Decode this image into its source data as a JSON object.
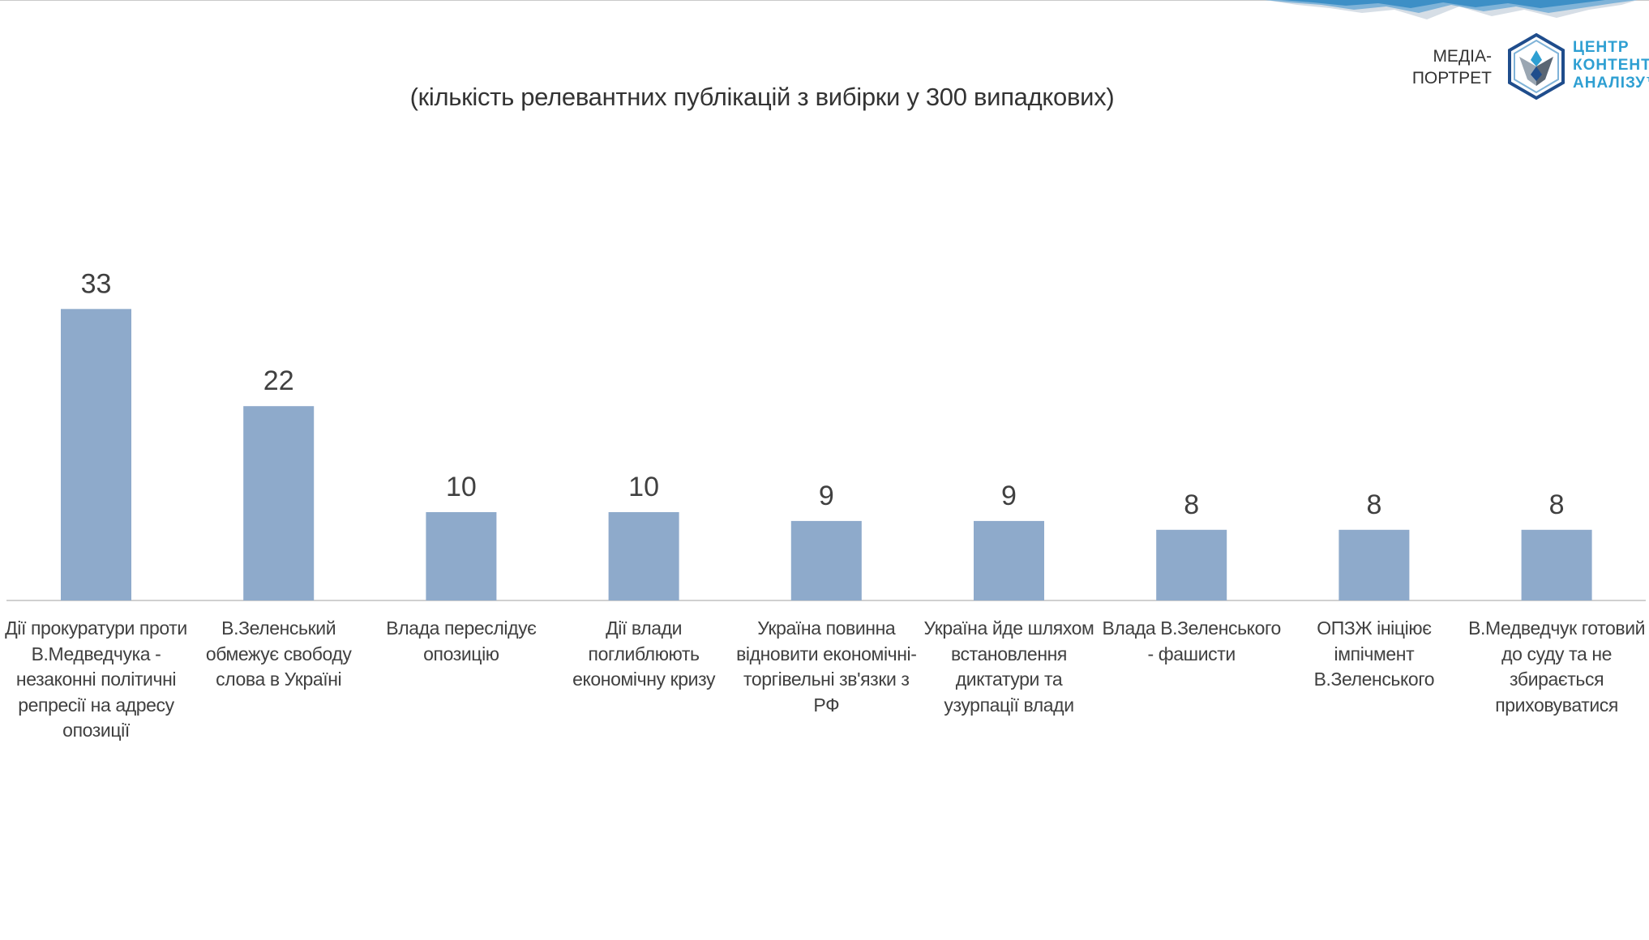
{
  "header": {
    "subtitle": "(кількість релевантних публікацій з вибірки у 300 випадкових)",
    "brand_media_line1": "МЕДІА-",
    "brand_media_line2": "ПОРТРЕТ",
    "brand_center_line1": "ЦЕНТР",
    "brand_center_line2": "КОНТЕНТ_",
    "brand_center_line3": "АНАЛІЗУ™",
    "logo_icon": "hexagon-bird-icon",
    "accent_color": "#2e9fd2"
  },
  "chart_data": {
    "type": "bar",
    "title": "",
    "subtitle": "(кількість релевантних публікацій з вибірки у 300 випадкових)",
    "xlabel": "",
    "ylabel": "",
    "ylim": [
      0,
      60
    ],
    "grid": false,
    "bar_color": "#8eaacb",
    "categories": [
      "Дії прокуратури проти В.Медведчука - незаконні політичні репресії на адресу опозиції",
      "В.Зеленський обмежує свободу слова в Україні",
      "Влада переслідує опозицію",
      "Дії влади поглиблюють економічну кризу",
      "Україна повинна відновити економічні-торгівельні зв'язки з РФ",
      "Україна йде шляхом встановлення диктатури та узурпації влади",
      "Влада В.Зеленського - фашисти",
      "ОПЗЖ ініціює імпічмент В.Зеленського",
      "В.Медведчук готовий до суду та не збирається приховуватися"
    ],
    "values": [
      33,
      22,
      10,
      10,
      9,
      9,
      8,
      8,
      8
    ]
  }
}
